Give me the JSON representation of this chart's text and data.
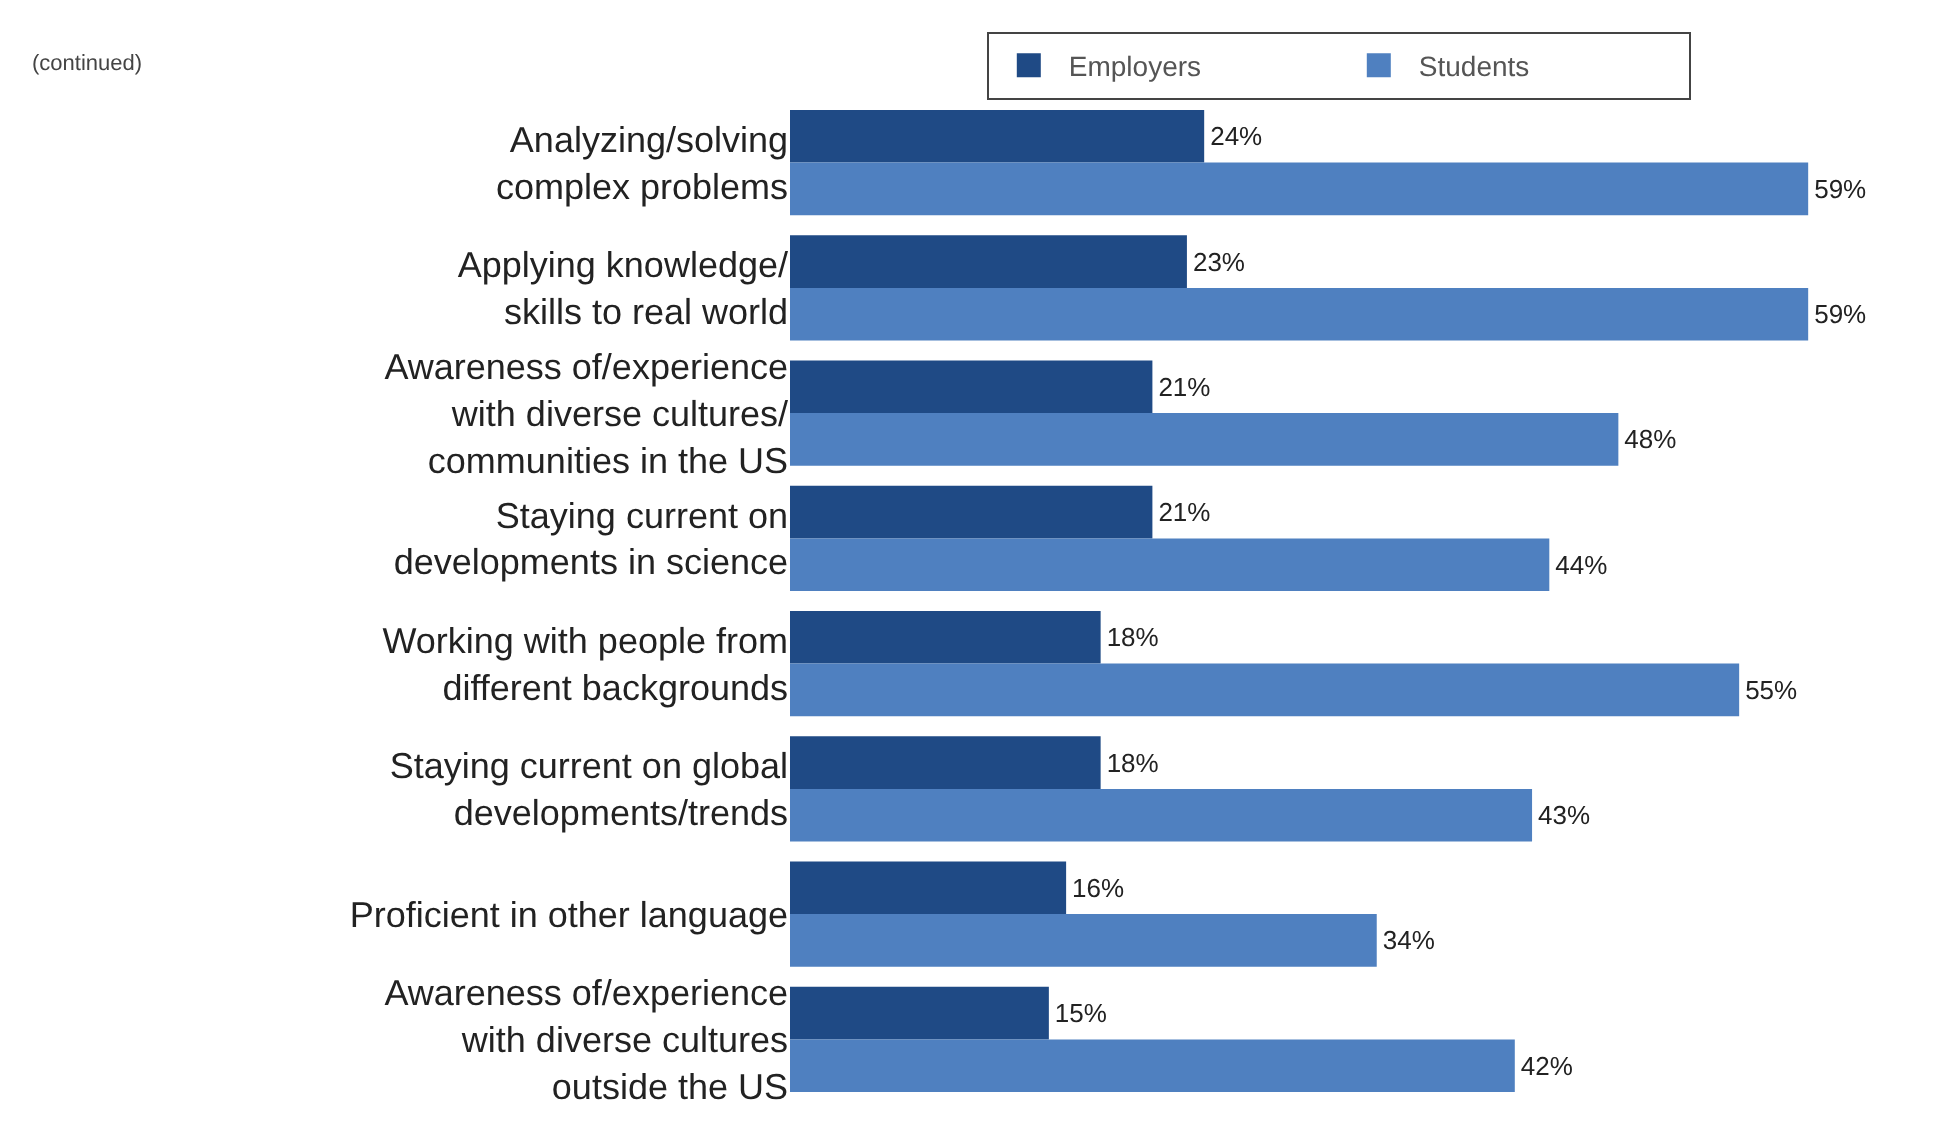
{
  "chart_data": {
    "type": "bar",
    "orientation": "horizontal",
    "tick_labels": "y",
    "categories": [
      "Analyzing/solving\ncomplex problems",
      "Applying knowledge/\nskills to real world",
      "Awareness of/experience\nwith diverse cultures/\ncommunities in the US",
      "Staying current on\ndevelopments in science",
      "Working with people from\ndifferent backgrounds",
      "Staying current on global\ndevelopments/trends",
      "Proficient in other language",
      "Awareness of/experience\nwith diverse cultures\noutside the US"
    ],
    "series": [
      {
        "name": "Employers",
        "color": "#1f4a85",
        "values": [
          24,
          23,
          21,
          21,
          18,
          18,
          16,
          15
        ],
        "value_labels": [
          "24%",
          "23%",
          "21%",
          "21%",
          "18%",
          "18%",
          "16%",
          "15%"
        ]
      },
      {
        "name": "Students",
        "color": "#4f80c0",
        "values": [
          59,
          59,
          48,
          44,
          55,
          43,
          34,
          42
        ],
        "value_labels": [
          "59%",
          "59%",
          "48%",
          "44%",
          "55%",
          "43%",
          "34%",
          "42%"
        ]
      }
    ],
    "legend": "top",
    "annotations": [
      "(continued)"
    ]
  }
}
